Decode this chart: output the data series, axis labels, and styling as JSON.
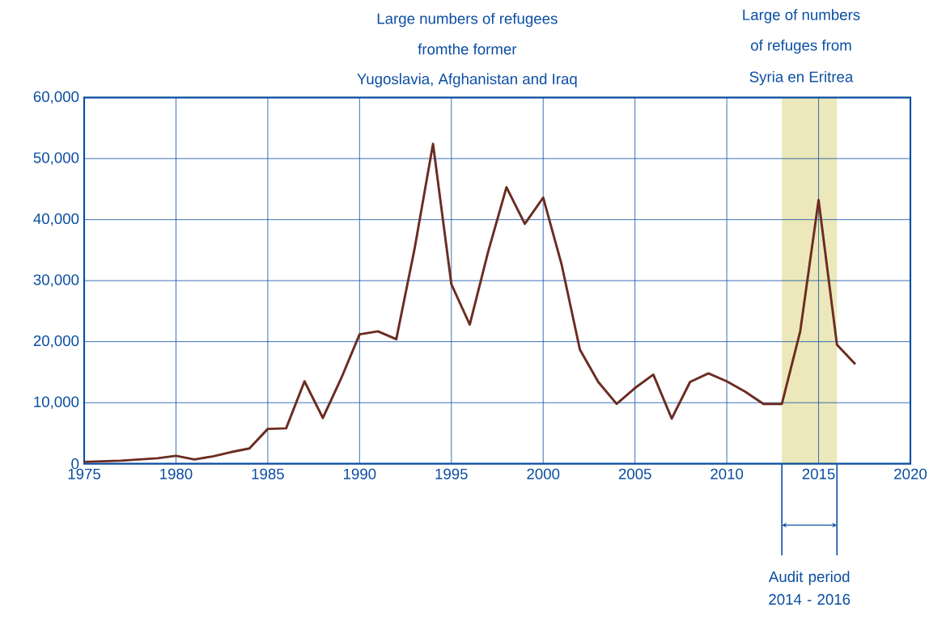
{
  "chart_data": {
    "type": "line",
    "x": [
      1975,
      1976,
      1977,
      1978,
      1979,
      1980,
      1981,
      1982,
      1983,
      1984,
      1985,
      1986,
      1987,
      1988,
      1989,
      1990,
      1991,
      1992,
      1993,
      1994,
      1995,
      1996,
      1997,
      1998,
      1999,
      2000,
      2001,
      2002,
      2003,
      2004,
      2005,
      2006,
      2007,
      2008,
      2009,
      2010,
      2011,
      2012,
      2013,
      2014,
      2015,
      2016,
      2017
    ],
    "series": [
      {
        "color": "#6b2c22",
        "values": [
          300,
          400,
          500,
          700,
          900,
          1300,
          700,
          1200,
          1900,
          2500,
          5700,
          5800,
          13500,
          7500,
          14000,
          21200,
          21700,
          20400,
          35300,
          52400,
          29400,
          22800,
          34700,
          45300,
          39300,
          43600,
          32700,
          18700,
          13400,
          9800,
          12400,
          14600,
          7400,
          13400,
          14800,
          13500,
          11800,
          9800,
          9800,
          21700,
          43200,
          19500,
          16300
        ]
      }
    ],
    "xlim": [
      1975,
      2020
    ],
    "xticks": [
      1975,
      1980,
      1985,
      1990,
      1995,
      2000,
      2005,
      2010,
      2015,
      2020
    ],
    "ylim": [
      0,
      60000
    ],
    "yticks": [
      0,
      {
        "value": 10000,
        "label": "10,000"
      },
      {
        "value": 20000,
        "label": "20,000"
      },
      {
        "value": 30000,
        "label": "30,000"
      },
      {
        "value": 40000,
        "label": "40,000"
      },
      {
        "value": 50000,
        "label": "50,000"
      },
      {
        "value": 60000,
        "label": "60,000"
      }
    ],
    "grid": true,
    "marker": "none",
    "line_style": "solid",
    "bands": [
      {
        "axis": "x",
        "from": 2013,
        "to": 2016,
        "label": "Audit period 2014 - 2016",
        "color": "#ece8bb"
      }
    ],
    "annotations": [
      "Large numbers of refugees",
      "fromthe former",
      "Yugoslavia, Afghanistan and Iraq",
      "Large of numbers",
      "of refuges from",
      "Syria en Eritrea"
    ]
  }
}
